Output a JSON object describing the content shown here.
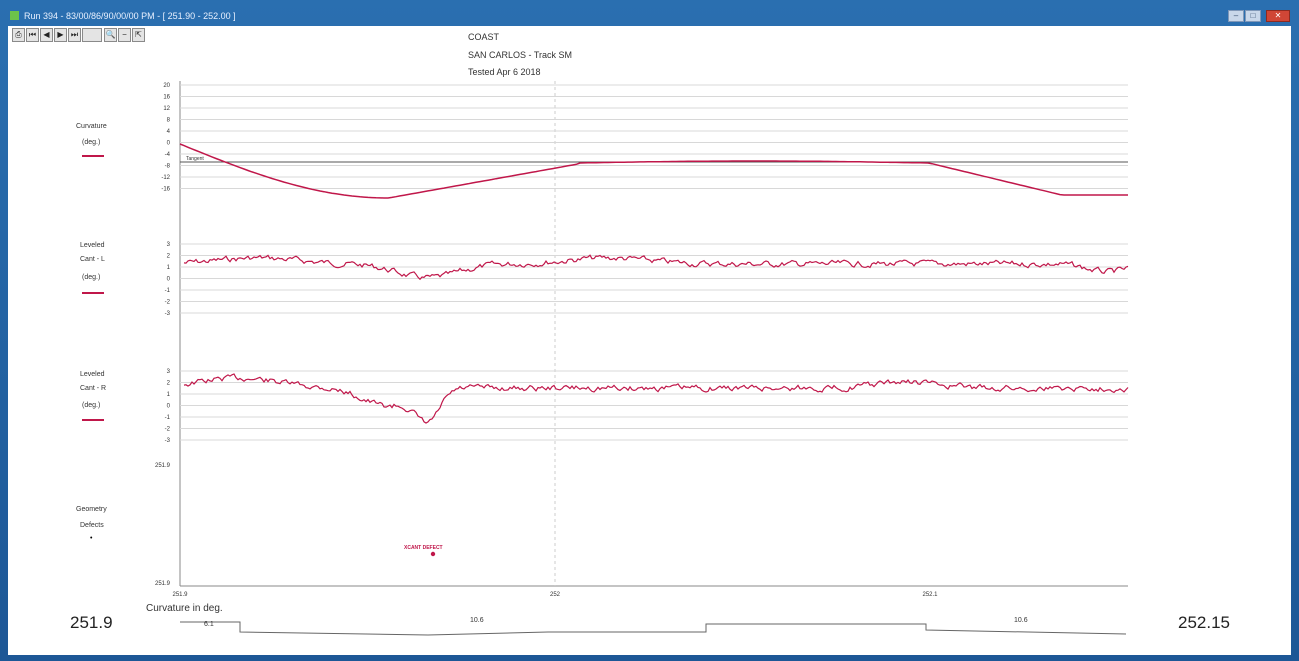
{
  "window": {
    "title": "Run 394 - 83/00/86/90/00/00 PM - [ 251.90 - 252.00 ]",
    "buttons": [
      "–",
      "□",
      "✕"
    ]
  },
  "toolbar": {
    "icons": [
      "print-icon",
      "skip-back-icon",
      "prev-icon",
      "next-icon",
      "skip-forward-icon",
      "blank-icon",
      "zoom-in-icon",
      "zoom-out-icon",
      "cursor-icon"
    ]
  },
  "header": {
    "line1": "COAST",
    "line2": "SAN CARLOS  -  Track SM",
    "line3": "Tested Apr 6 2018"
  },
  "channels": {
    "curvature": {
      "name": "Curvature",
      "unit": "(deg.)",
      "tangent_label": "Tangent"
    },
    "level_left": {
      "name": "Leveled",
      "sub": "Cant - L",
      "unit": "(deg.)"
    },
    "level_right": {
      "name": "Leveled",
      "sub": "Cant - R",
      "unit": "(deg.)"
    },
    "geometry": {
      "name": "Geometry",
      "sub": "Defects",
      "marker": "•",
      "defect_label": "XCANT DEFECT"
    }
  },
  "y_ticks": {
    "curvature": [
      "20",
      "16",
      "12",
      "8",
      "4",
      "0",
      "-4",
      "-8",
      "-12",
      "-16"
    ],
    "level_left": [
      "3",
      "2",
      "1",
      "0",
      "-1",
      "-2",
      "-3"
    ],
    "level_right": [
      "3",
      "2",
      "1",
      "0",
      "-1",
      "-2",
      "-3"
    ],
    "geometry_top": "251.9",
    "geometry_bottom": "251.9"
  },
  "x_ticks": [
    "251.9",
    "252",
    "252.1"
  ],
  "footer": {
    "left_mp": "251.9",
    "right_mp": "252.15",
    "curvature_caption": "Curvature in deg.",
    "seg1": "6.1",
    "seg2": "10.6",
    "seg3": "10.6"
  },
  "colors": {
    "trace": "#c0174a",
    "grid": "#d8d8d8",
    "window_blue": "#1d5796"
  }
}
